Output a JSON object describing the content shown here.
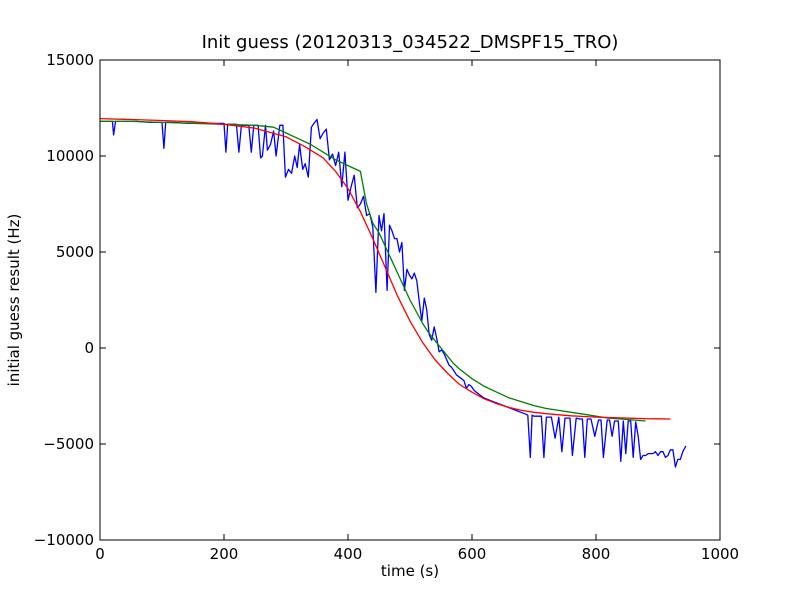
{
  "chart_data": {
    "type": "line",
    "title": "Init guess (20120313_034522_DMSPF15_TRO)",
    "xlabel": "time (s)",
    "ylabel": "initial guess result (Hz)",
    "xlim": [
      0,
      1000
    ],
    "ylim": [
      -10000,
      15000
    ],
    "xticks": [
      0,
      200,
      400,
      600,
      800,
      1000
    ],
    "xtick_labels": [
      "0",
      "200",
      "400",
      "600",
      "800",
      "1000"
    ],
    "yticks": [
      -10000,
      -5000,
      0,
      5000,
      10000,
      15000
    ],
    "ytick_labels": [
      "−10000",
      "−5000",
      "0",
      "5000",
      "10000",
      "15000"
    ],
    "grid": false,
    "legend": "none",
    "series": [
      {
        "color": "#0000ff",
        "x": [
          0,
          10,
          20,
          22,
          25,
          40,
          60,
          80,
          100,
          103,
          106,
          120,
          140,
          160,
          170,
          180,
          200,
          203,
          206,
          220,
          224,
          228,
          240,
          244,
          248,
          255,
          259,
          262,
          267,
          270,
          275,
          280,
          284,
          290,
          295,
          299,
          304,
          309,
          314,
          318,
          322,
          327,
          331,
          336,
          341,
          345,
          350,
          355,
          360,
          365,
          370,
          375,
          380,
          385,
          390,
          395,
          400,
          405,
          410,
          415,
          420,
          425,
          430,
          435,
          440,
          445,
          450,
          454,
          458,
          463,
          467,
          471,
          475,
          479,
          483,
          487,
          491,
          495,
          499,
          503,
          507,
          511,
          515,
          519,
          523,
          527,
          531,
          535,
          539,
          543,
          547,
          551,
          555,
          559,
          563,
          567,
          571,
          575,
          579,
          583,
          587,
          591,
          595,
          599,
          603,
          607,
          611,
          615,
          619,
          623,
          627,
          631,
          635,
          639,
          643,
          647,
          651,
          655,
          659,
          663,
          667,
          671,
          675,
          679,
          683,
          687,
          690,
          694,
          697,
          700,
          706,
          712,
          716,
          720,
          724,
          728,
          734,
          740,
          745,
          750,
          754,
          758,
          762,
          768,
          774,
          778,
          782,
          786,
          792,
          798,
          804,
          808,
          812,
          818,
          822,
          826,
          830,
          836,
          840,
          844,
          848,
          852,
          856,
          860,
          864,
          868,
          872,
          876,
          880,
          884,
          888,
          892,
          896,
          900,
          904,
          908,
          912,
          916,
          920,
          924,
          928,
          932,
          936,
          940,
          945
        ],
        "y": [
          11800,
          11800,
          11800,
          11100,
          11800,
          11800,
          11800,
          11750,
          11750,
          10400,
          11750,
          11750,
          11700,
          11700,
          11700,
          11700,
          11700,
          10200,
          11650,
          11650,
          10200,
          11600,
          11600,
          10200,
          11600,
          11600,
          9900,
          10000,
          11600,
          10300,
          10600,
          11300,
          10000,
          11600,
          11600,
          8900,
          9300,
          9100,
          10000,
          9400,
          10600,
          9300,
          9600,
          8900,
          11500,
          11700,
          11900,
          10900,
          11200,
          11400,
          9800,
          10100,
          9500,
          10200,
          8400,
          10200,
          7700,
          8400,
          9000,
          7300,
          7500,
          7900,
          6900,
          7000,
          6300,
          2900,
          6900,
          6100,
          7000,
          3000,
          6400,
          6100,
          5700,
          5700,
          5000,
          5500,
          3000,
          4100,
          3800,
          3600,
          3900,
          3500,
          2400,
          1400,
          2600,
          2000,
          700,
          400,
          1100,
          500,
          -200,
          -100,
          -300,
          -600,
          -900,
          -1000,
          -1200,
          -1400,
          -1500,
          -1600,
          -1700,
          -2100,
          -1900,
          -2000,
          -2200,
          -2300,
          -2400,
          -2500,
          -2600,
          -2650,
          -2700,
          -2750,
          -2800,
          -2850,
          -2900,
          -2950,
          -3000,
          -3050,
          -3100,
          -3150,
          -3200,
          -3250,
          -3300,
          -3350,
          -3400,
          -3450,
          -3500,
          -5700,
          -3500,
          -3550,
          -3550,
          -3550,
          -5700,
          -3600,
          -3600,
          -3600,
          -4700,
          -3600,
          -5400,
          -3650,
          -3650,
          -3650,
          -5600,
          -3650,
          -3700,
          -3700,
          -5700,
          -3700,
          -3700,
          -4600,
          -3750,
          -3750,
          -5700,
          -3750,
          -3750,
          -4600,
          -3800,
          -3800,
          -5900,
          -3800,
          -5500,
          -3800,
          -3800,
          -5700,
          -3850,
          -4600,
          -5800,
          -5600,
          -5600,
          -5500,
          -5500,
          -5500,
          -5400,
          -5600,
          -5400,
          -5400,
          -5700,
          -5600,
          -5300,
          -5300,
          -6200,
          -5800,
          -5800,
          -5400,
          -5100
        ],
        "_note_x": "",
        "_note_y": ""
      },
      {
        "color": "#008000",
        "x": [
          0,
          50,
          100,
          150,
          200,
          250,
          280,
          300,
          320,
          340,
          360,
          380,
          400,
          420,
          430,
          440,
          450,
          460,
          470,
          480,
          490,
          500,
          510,
          520,
          530,
          540,
          550,
          560,
          570,
          580,
          600,
          620,
          640,
          660,
          680,
          700,
          720,
          740,
          760,
          780,
          800,
          820,
          840,
          860,
          880
        ],
        "y": [
          11800,
          11800,
          11750,
          11700,
          11650,
          11600,
          11500,
          11200,
          10900,
          10600,
          10200,
          9800,
          9500,
          9200,
          7500,
          6500,
          6000,
          5300,
          4600,
          3900,
          3200,
          2500,
          1900,
          1300,
          800,
          400,
          0,
          -400,
          -800,
          -1100,
          -1600,
          -2000,
          -2300,
          -2600,
          -2800,
          -3000,
          -3150,
          -3250,
          -3350,
          -3450,
          -3550,
          -3650,
          -3700,
          -3750,
          -3800
        ]
      },
      {
        "color": "#ff0000",
        "x": [
          0,
          50,
          100,
          150,
          200,
          250,
          300,
          330,
          360,
          380,
          400,
          420,
          440,
          460,
          480,
          500,
          520,
          540,
          560,
          580,
          600,
          620,
          640,
          660,
          680,
          700,
          720,
          740,
          760,
          780,
          800,
          820,
          840,
          860,
          880,
          900,
          920
        ],
        "y": [
          11950,
          11900,
          11850,
          11780,
          11650,
          11450,
          11000,
          10500,
          9900,
          9200,
          8300,
          7100,
          5700,
          4200,
          2700,
          1400,
          300,
          -600,
          -1300,
          -1900,
          -2300,
          -2650,
          -2900,
          -3100,
          -3250,
          -3350,
          -3420,
          -3480,
          -3530,
          -3570,
          -3600,
          -3620,
          -3640,
          -3660,
          -3680,
          -3690,
          -3700
        ]
      }
    ]
  }
}
